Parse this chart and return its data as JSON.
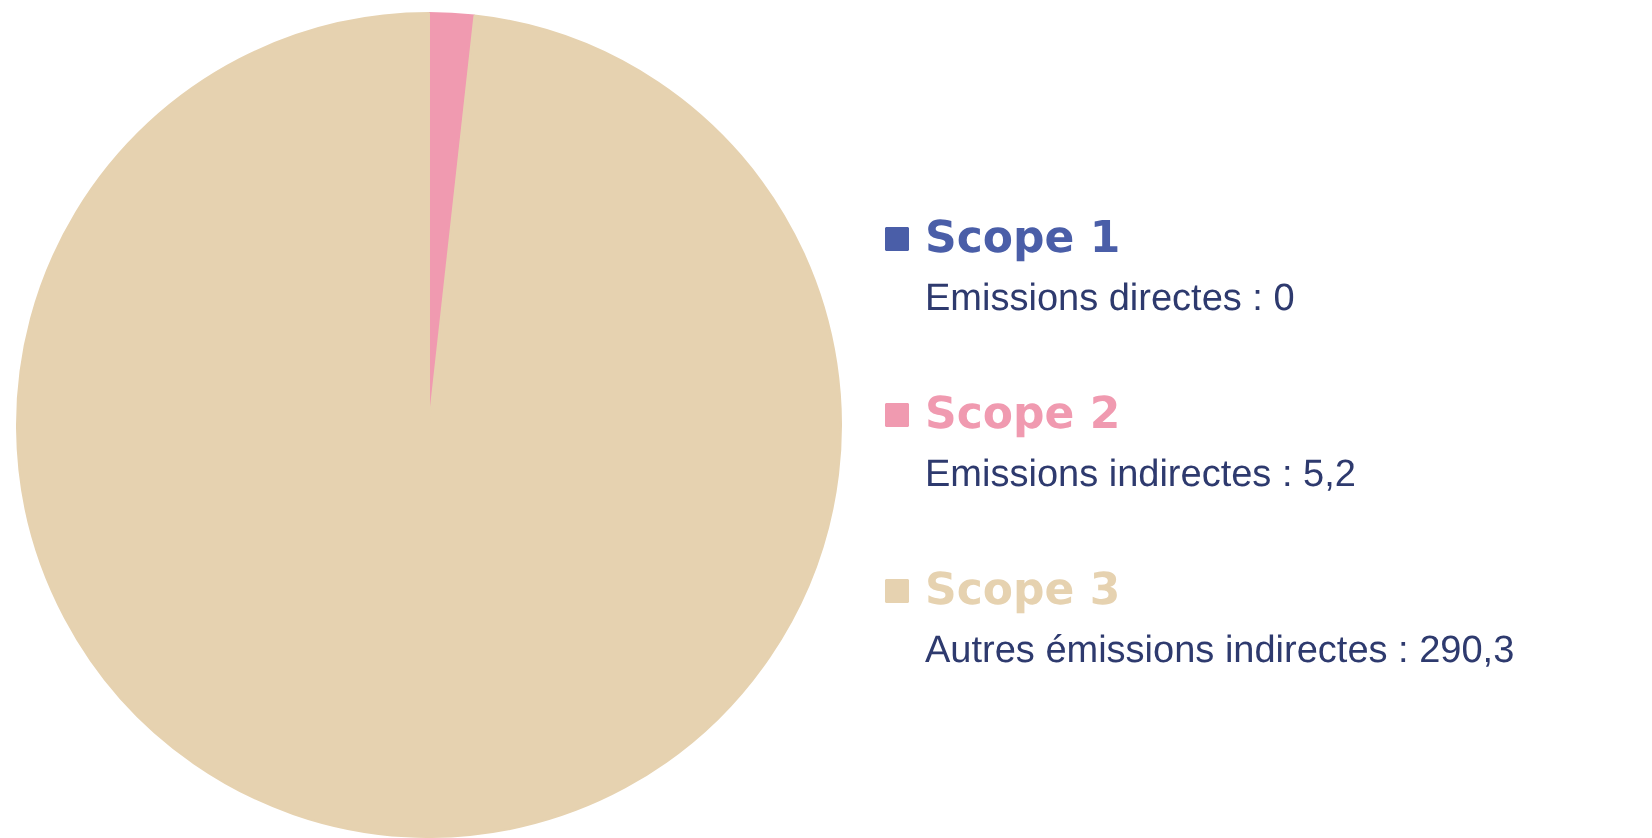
{
  "chart_data": {
    "type": "pie",
    "categories": [
      "Scope 1",
      "Scope 2",
      "Scope 3"
    ],
    "values": [
      0,
      5.2,
      290.3
    ],
    "colors": [
      "#4a5ea8",
      "#f09ab0",
      "#e6d2b0"
    ],
    "value_labels": [
      "Emissions directes : 0",
      "Emissions indirectes : 5,2",
      "Autres émissions indirectes : 290,3"
    ],
    "legend": "right"
  }
}
